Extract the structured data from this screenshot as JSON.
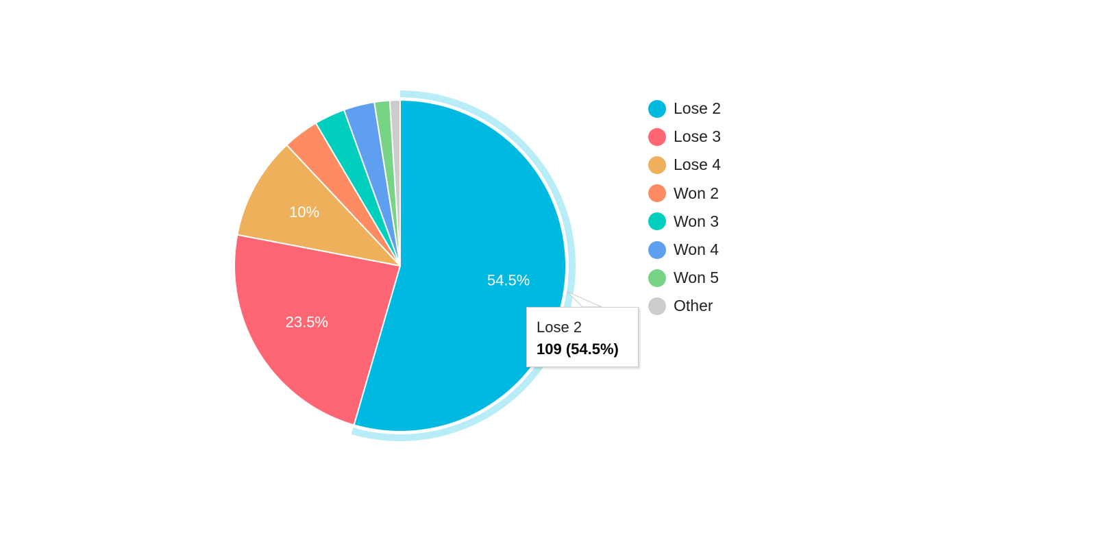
{
  "chart_data": {
    "type": "pie",
    "categories": [
      "Lose 2",
      "Lose 3",
      "Lose 4",
      "Won 2",
      "Won 3",
      "Won 4",
      "Won 5",
      "Other"
    ],
    "values": [
      109,
      47,
      20,
      7,
      6,
      6,
      3,
      2
    ],
    "slice_labels": [
      "54.5%",
      "23.5%",
      "10%",
      "",
      "",
      "",
      "",
      ""
    ],
    "colors": [
      "#00b9e0",
      "#ff6673",
      "#eeb05a",
      "#ff8b63",
      "#00cfbe",
      "#5ea0ef",
      "#78d485",
      "#cccccc"
    ],
    "legend_position": "right",
    "highlighted": "Lose 2"
  },
  "tooltip": {
    "name": "Lose 2",
    "value": "109 (54.5%)"
  }
}
